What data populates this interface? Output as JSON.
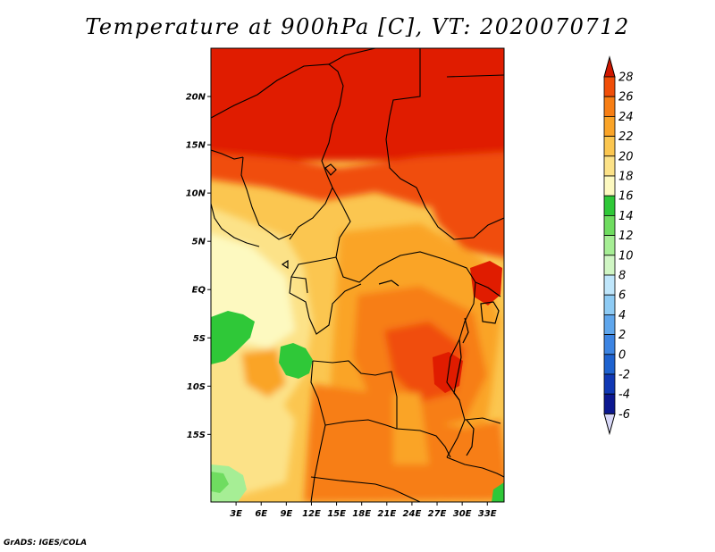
{
  "title": "Temperature at 900hPa [C], VT: 2020070712",
  "credit": "GrADS: IGES/COLA",
  "map": {
    "lat_range": [
      -22,
      25
    ],
    "lon_range": [
      0,
      35
    ],
    "lat_ticks": [
      {
        "label": "20N",
        "value": 20
      },
      {
        "label": "15N",
        "value": 15
      },
      {
        "label": "10N",
        "value": 10
      },
      {
        "label": "5N",
        "value": 5
      },
      {
        "label": "EQ",
        "value": 0
      },
      {
        "label": "5S",
        "value": -5
      },
      {
        "label": "10S",
        "value": -10
      },
      {
        "label": "15S",
        "value": -15
      }
    ],
    "lon_ticks": [
      {
        "label": "3E",
        "value": 3
      },
      {
        "label": "6E",
        "value": 6
      },
      {
        "label": "9E",
        "value": 9
      },
      {
        "label": "12E",
        "value": 12
      },
      {
        "label": "15E",
        "value": 15
      },
      {
        "label": "18E",
        "value": 18
      },
      {
        "label": "21E",
        "value": 21
      },
      {
        "label": "24E",
        "value": 24
      },
      {
        "label": "27E",
        "value": 27
      },
      {
        "label": "30E",
        "value": 30
      },
      {
        "label": "33E",
        "value": 33
      }
    ]
  },
  "colorbar": {
    "levels": [
      "28",
      "26",
      "24",
      "22",
      "20",
      "18",
      "16",
      "14",
      "12",
      "10",
      "8",
      "6",
      "4",
      "2",
      "0",
      "-2",
      "-4",
      "-6"
    ],
    "colors": [
      "#e01c00",
      "#f04e08",
      "#f77e14",
      "#faa428",
      "#fbc650",
      "#fce288",
      "#fdf9c0",
      "#2fc838",
      "#6fdc60",
      "#a6ee95",
      "#d0f6c4",
      "#bfe6fb",
      "#8ecbf4",
      "#5fa6ec",
      "#3c84e2",
      "#1e62cf",
      "#1038b4",
      "#0c1890"
    ],
    "top_arrow_color": "#cf1700",
    "bottom_arrow_color": "#d8d8f8"
  }
}
